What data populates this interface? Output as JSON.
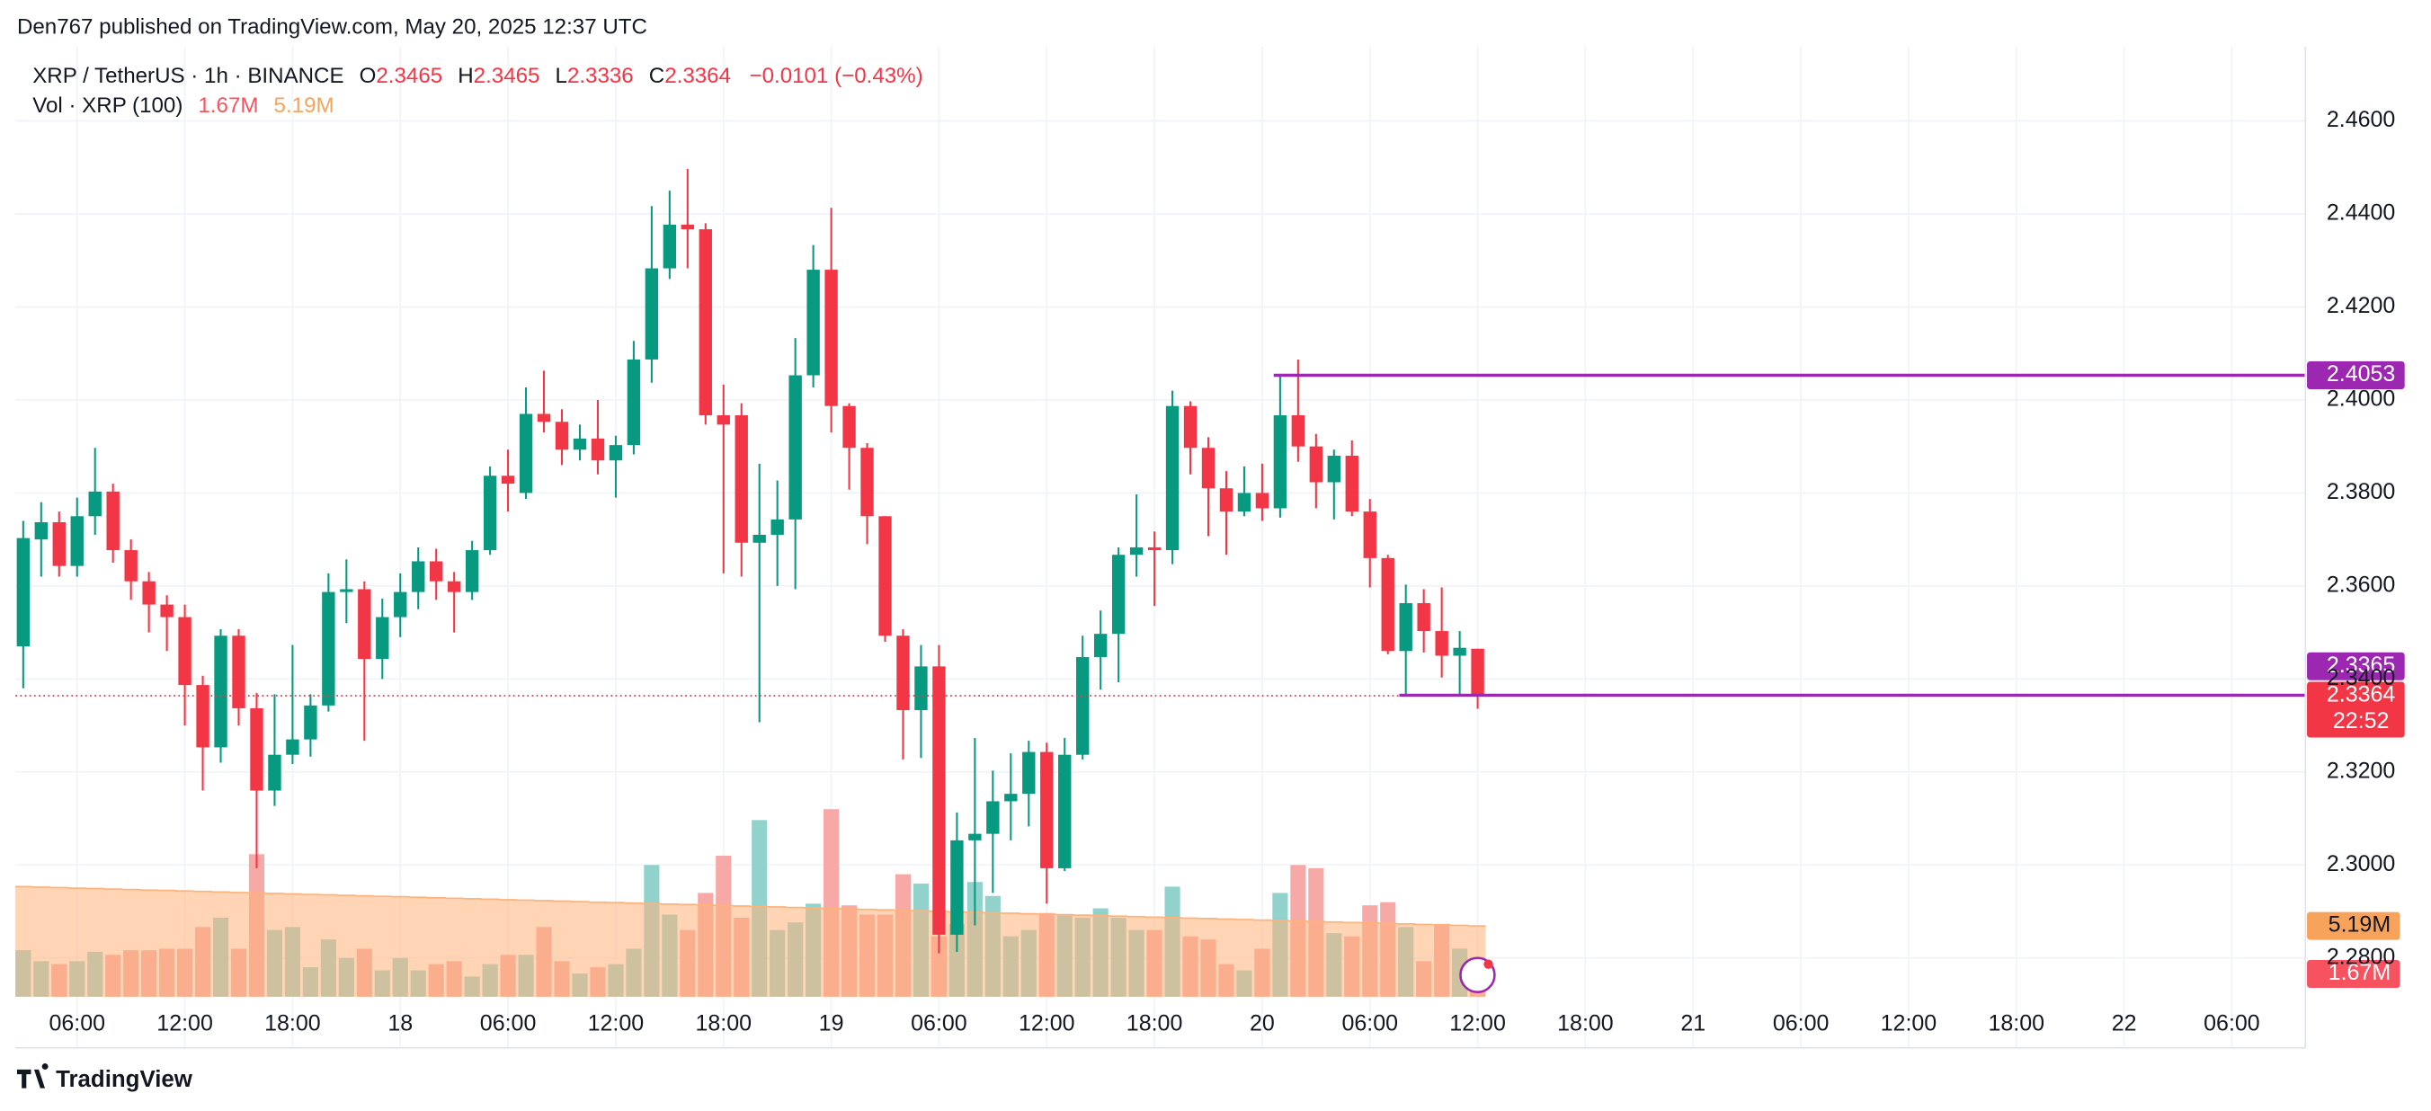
{
  "header": {
    "published": "Den767 published on TradingView.com, May 20, 2025 12:37 UTC"
  },
  "footer": {
    "brand": "TradingView"
  },
  "chart_data": {
    "type": "candlestick",
    "symbol": "XRP / TetherUS · 1h · BINANCE",
    "ohlc_letters": {
      "open": "O",
      "high": "H",
      "low": "L",
      "close": "C"
    },
    "change_label": "−0.0101 (−0.43%)",
    "up_color": "#089981",
    "down_color": "#f23645",
    "open": [
      2.347,
      2.37,
      2.3737,
      2.3643,
      2.375,
      2.3803,
      2.3677,
      2.361,
      2.356,
      2.3533,
      2.3387,
      2.3253,
      2.3493,
      2.3337,
      2.316,
      2.3237,
      2.327,
      2.3343,
      2.3587,
      2.3593,
      2.3443,
      2.3533,
      2.3587,
      2.3653,
      2.361,
      2.3587,
      2.3677,
      2.3837,
      2.38,
      2.397,
      2.3953,
      2.3893,
      2.3917,
      2.387,
      2.3903,
      2.4087,
      2.4283,
      2.4377,
      2.4367,
      2.3967,
      2.3967,
      2.3693,
      2.371,
      2.3743,
      2.4053,
      2.428,
      2.3987,
      2.3897,
      2.375,
      2.3493,
      2.3333,
      2.3427,
      2.285,
      2.3053,
      2.3067,
      2.3137,
      2.3153,
      2.3243,
      2.2993,
      2.3237,
      2.3447,
      2.3497,
      2.3667,
      2.3683,
      2.3677,
      2.3987,
      2.3897,
      2.381,
      2.376,
      2.38,
      2.3767,
      2.3967,
      2.39,
      2.3823,
      2.388,
      2.376,
      2.366,
      2.346,
      2.3563,
      2.3503,
      2.345,
      2.3465
    ],
    "high": [
      2.374,
      2.378,
      2.376,
      2.379,
      2.3897,
      2.382,
      2.37,
      2.363,
      2.358,
      2.356,
      2.3407,
      2.3507,
      2.3507,
      2.337,
      2.3367,
      2.3473,
      2.3367,
      2.3627,
      2.3657,
      2.361,
      2.3573,
      2.3627,
      2.3683,
      2.368,
      2.363,
      2.3697,
      2.3857,
      2.3893,
      2.4027,
      2.4063,
      2.398,
      2.3947,
      2.4,
      2.3923,
      2.4127,
      2.4417,
      2.445,
      2.4497,
      2.438,
      2.4033,
      2.3993,
      2.3863,
      2.3827,
      2.4133,
      2.4333,
      2.4413,
      2.3993,
      2.3907,
      2.375,
      2.3507,
      2.3473,
      2.3473,
      2.3113,
      2.3273,
      2.3203,
      2.324,
      2.3267,
      2.3263,
      2.3273,
      2.3493,
      2.3547,
      2.3683,
      2.3797,
      2.3717,
      2.402,
      2.3997,
      2.392,
      2.3847,
      2.3857,
      2.3863,
      2.4053,
      2.4087,
      2.3927,
      2.3893,
      2.3913,
      2.3787,
      2.3667,
      2.3603,
      2.3593,
      2.3597,
      2.3503,
      2.3465
    ],
    "low": [
      2.338,
      2.362,
      2.362,
      2.362,
      2.371,
      2.365,
      2.357,
      2.35,
      2.346,
      2.33,
      2.316,
      2.322,
      2.33,
      2.2993,
      2.3127,
      2.3217,
      2.3233,
      2.333,
      2.352,
      2.3267,
      2.34,
      2.349,
      2.355,
      2.357,
      2.35,
      2.357,
      2.3667,
      2.376,
      2.3787,
      2.393,
      2.386,
      2.387,
      2.384,
      2.379,
      2.3883,
      2.4037,
      2.426,
      2.4283,
      2.3947,
      2.3627,
      2.362,
      2.3307,
      2.36,
      2.3593,
      2.4027,
      2.393,
      2.3807,
      2.369,
      2.348,
      2.3227,
      2.323,
      2.281,
      2.2813,
      2.287,
      2.294,
      2.3053,
      2.3083,
      2.2917,
      2.2987,
      2.3227,
      2.3377,
      2.3393,
      2.362,
      2.3557,
      2.3647,
      2.384,
      2.3707,
      2.3667,
      2.375,
      2.374,
      2.3747,
      2.3867,
      2.3767,
      2.3743,
      2.375,
      2.3597,
      2.3453,
      2.3363,
      2.3457,
      2.3403,
      2.3363,
      2.3336
    ],
    "close": [
      2.3703,
      2.3737,
      2.3643,
      2.375,
      2.3803,
      2.3677,
      2.361,
      2.356,
      2.3533,
      2.3387,
      2.3253,
      2.3493,
      2.3337,
      2.316,
      2.3237,
      2.327,
      2.3343,
      2.3587,
      2.3593,
      2.3443,
      2.3533,
      2.3587,
      2.3653,
      2.361,
      2.3587,
      2.3677,
      2.3837,
      2.382,
      2.397,
      2.3953,
      2.3893,
      2.3917,
      2.387,
      2.3903,
      2.4087,
      2.4283,
      2.4377,
      2.4367,
      2.3967,
      2.3947,
      2.3693,
      2.371,
      2.3743,
      2.4053,
      2.428,
      2.3987,
      2.3897,
      2.375,
      2.3493,
      2.3333,
      2.3427,
      2.285,
      2.3053,
      2.3067,
      2.3137,
      2.3153,
      2.3243,
      2.2993,
      2.3237,
      2.3447,
      2.3497,
      2.3667,
      2.3683,
      2.3677,
      2.3987,
      2.3897,
      2.381,
      2.376,
      2.38,
      2.3767,
      2.3967,
      2.39,
      2.3823,
      2.388,
      2.376,
      2.366,
      2.346,
      2.3563,
      2.3503,
      2.345,
      2.3467,
      2.3364
    ],
    "countdown": "22:52",
    "volume": {
      "name": "Vol · XRP (100)",
      "up_color": "#92d2cc",
      "down_color": "#f7a9a7",
      "ma_color": "#ffb27a",
      "ylim": [
        0,
        40
      ],
      "last_label": "1.67M",
      "ma_label": "5.19M",
      "values": [
        3.41,
        2.61,
        2.39,
        2.61,
        3.3,
        3.07,
        3.41,
        3.41,
        3.52,
        3.52,
        5.11,
        5.8,
        3.52,
        10.45,
        4.89,
        5.11,
        2.16,
        4.2,
        2.84,
        3.52,
        1.93,
        2.84,
        1.93,
        2.39,
        2.61,
        1.48,
        2.39,
        3.07,
        3.07,
        5.11,
        2.61,
        1.7,
        2.16,
        2.39,
        3.52,
        9.66,
        6.02,
        4.89,
        7.61,
        10.34,
        5.8,
        12.95,
        4.89,
        5.45,
        6.82,
        13.75,
        6.7,
        6.02,
        6.02,
        8.98,
        8.3,
        4.43,
        5.34,
        8.41,
        7.39,
        4.43,
        4.89,
        6.14,
        6.02,
        5.8,
        6.48,
        5.8,
        4.89,
        4.89,
        8.07,
        4.43,
        4.2,
        2.39,
        1.93,
        3.52,
        7.61,
        9.66,
        9.43,
        4.66,
        4.43,
        6.7,
        6.93,
        5.11,
        2.61,
        5.34,
        3.52,
        1.67
      ],
      "ma": [
        8.07,
        8.03,
        8.0,
        7.96,
        7.93,
        7.89,
        7.86,
        7.82,
        7.79,
        7.75,
        7.72,
        7.68,
        7.64,
        7.61,
        7.57,
        7.54,
        7.5,
        7.47,
        7.43,
        7.4,
        7.36,
        7.33,
        7.29,
        7.25,
        7.22,
        7.18,
        7.15,
        7.11,
        7.08,
        7.04,
        7.01,
        6.97,
        6.93,
        6.9,
        6.86,
        6.83,
        6.79,
        6.76,
        6.72,
        6.69,
        6.65,
        6.62,
        6.58,
        6.54,
        6.51,
        6.47,
        6.44,
        6.4,
        6.37,
        6.33,
        6.3,
        6.26,
        6.22,
        6.19,
        6.15,
        6.12,
        6.08,
        6.05,
        6.01,
        5.98,
        5.94,
        5.91,
        5.87,
        5.83,
        5.8,
        5.76,
        5.73,
        5.69,
        5.66,
        5.62,
        5.59,
        5.55,
        5.51,
        5.48,
        5.44,
        5.41,
        5.37,
        5.34,
        5.3,
        5.27,
        5.23,
        5.19
      ]
    },
    "horizontal_lines": [
      {
        "value": 2.4053,
        "label": "2.4053",
        "x": 70,
        "color": "#9c27b0"
      },
      {
        "value": 2.3365,
        "label": "2.3365",
        "x": 77,
        "color": "#9c27b0"
      }
    ],
    "xlim": [
      -0.43,
      127.1
    ],
    "xticks": [
      {
        "value": 3,
        "label": "06:00"
      },
      {
        "value": 9,
        "label": "12:00"
      },
      {
        "value": 15,
        "label": "18:00"
      },
      {
        "value": 21,
        "label": "18"
      },
      {
        "value": 27,
        "label": "06:00"
      },
      {
        "value": 33,
        "label": "12:00"
      },
      {
        "value": 39,
        "label": "18:00"
      },
      {
        "value": 45,
        "label": "19"
      },
      {
        "value": 51,
        "label": "06:00"
      },
      {
        "value": 57,
        "label": "12:00"
      },
      {
        "value": 63,
        "label": "18:00"
      },
      {
        "value": 69,
        "label": "20"
      },
      {
        "value": 75,
        "label": "06:00"
      },
      {
        "value": 81,
        "label": "12:00"
      },
      {
        "value": 87,
        "label": "18:00"
      },
      {
        "value": 93,
        "label": "21"
      },
      {
        "value": 99,
        "label": "06:00"
      },
      {
        "value": 105,
        "label": "12:00"
      },
      {
        "value": 111,
        "label": "18:00"
      },
      {
        "value": 117,
        "label": "22"
      },
      {
        "value": 123,
        "label": "06:00"
      }
    ],
    "ylim": [
      2.271,
      2.476
    ],
    "yticks": [
      {
        "value": 2.28,
        "label": "2.2800"
      },
      {
        "value": 2.3,
        "label": "2.3000"
      },
      {
        "value": 2.32,
        "label": "2.3200"
      },
      {
        "value": 2.34,
        "label": "2.3400"
      },
      {
        "value": 2.36,
        "label": "2.3600"
      },
      {
        "value": 2.38,
        "label": "2.3800"
      },
      {
        "value": 2.4,
        "label": "2.4000"
      },
      {
        "value": 2.42,
        "label": "2.4200"
      },
      {
        "value": 2.44,
        "label": "2.4400"
      },
      {
        "value": 2.46,
        "label": "2.4600"
      }
    ],
    "grid": true
  }
}
